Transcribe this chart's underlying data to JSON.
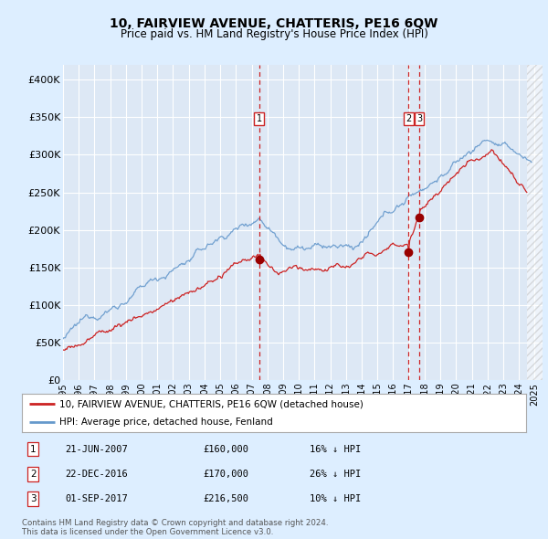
{
  "title": "10, FAIRVIEW AVENUE, CHATTERIS, PE16 6QW",
  "subtitle": "Price paid vs. HM Land Registry's House Price Index (HPI)",
  "xlim": [
    1995.0,
    2025.5
  ],
  "ylim": [
    0,
    420000
  ],
  "yticks": [
    0,
    50000,
    100000,
    150000,
    200000,
    250000,
    300000,
    350000,
    400000
  ],
  "ytick_labels": [
    "£0",
    "£50K",
    "£100K",
    "£150K",
    "£200K",
    "£250K",
    "£300K",
    "£350K",
    "£400K"
  ],
  "xticks": [
    1995,
    1996,
    1997,
    1998,
    1999,
    2000,
    2001,
    2002,
    2003,
    2004,
    2005,
    2006,
    2007,
    2008,
    2009,
    2010,
    2011,
    2012,
    2013,
    2014,
    2015,
    2016,
    2017,
    2018,
    2019,
    2020,
    2021,
    2022,
    2023,
    2024,
    2025
  ],
  "bg_color": "#ddeeff",
  "plot_bg_color": "#dde8f5",
  "grid_color": "#ffffff",
  "hpi_line_color": "#6699cc",
  "price_line_color": "#cc2222",
  "sale_marker_color": "#990000",
  "dashed_line_color": "#cc2222",
  "sales": [
    {
      "date": 2007.47,
      "price": 160000,
      "label": "1",
      "date_str": "21-JUN-2007",
      "price_str": "£160,000",
      "note": "16% ↓ HPI"
    },
    {
      "date": 2016.98,
      "price": 170000,
      "label": "2",
      "date_str": "22-DEC-2016",
      "price_str": "£170,000",
      "note": "26% ↓ HPI"
    },
    {
      "date": 2017.67,
      "price": 216500,
      "label": "3",
      "date_str": "01-SEP-2017",
      "price_str": "£216,500",
      "note": "10% ↓ HPI"
    }
  ],
  "legend_line1": "10, FAIRVIEW AVENUE, CHATTERIS, PE16 6QW (detached house)",
  "legend_line2": "HPI: Average price, detached house, Fenland",
  "footer": "Contains HM Land Registry data © Crown copyright and database right 2024.\nThis data is licensed under the Open Government Licence v3.0.",
  "hatch_start": 2024.5
}
